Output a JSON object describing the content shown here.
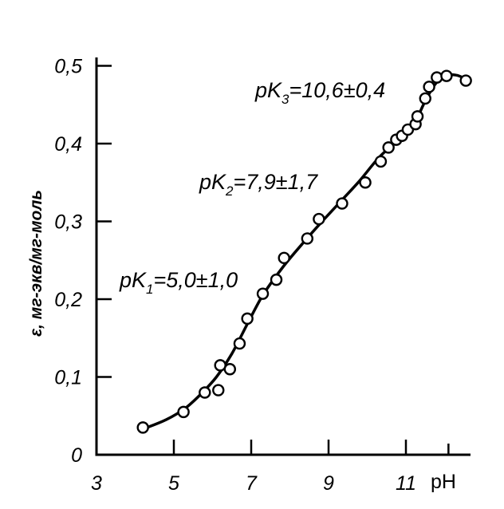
{
  "chart_data": {
    "type": "scatter",
    "xlabel": "pH",
    "ylabel": "ε, мг-экв/мг-моль",
    "xlim": [
      3,
      12.7
    ],
    "ylim": [
      0,
      0.52
    ],
    "xticks": [
      3,
      5,
      7,
      9,
      11
    ],
    "xtick_labels": [
      "3",
      "5",
      "7",
      "9",
      "11"
    ],
    "yticks": [
      0,
      0.1,
      0.2,
      0.3,
      0.4,
      0.5
    ],
    "ytick_labels": [
      "0",
      "0,1",
      "0,2",
      "0,3",
      "0,4",
      "0,5"
    ],
    "grid": false,
    "points": {
      "x": [
        4.2,
        5.25,
        5.8,
        6.15,
        6.2,
        6.45,
        6.7,
        6.9,
        7.3,
        7.65,
        7.85,
        8.45,
        8.75,
        9.35,
        9.95,
        10.35,
        10.55,
        10.75,
        10.9,
        11.05,
        11.25,
        11.3,
        11.5,
        11.6,
        11.8,
        12.05,
        12.55
      ],
      "y": [
        0.035,
        0.055,
        0.08,
        0.083,
        0.115,
        0.11,
        0.143,
        0.175,
        0.207,
        0.225,
        0.253,
        0.278,
        0.303,
        0.323,
        0.35,
        0.377,
        0.395,
        0.405,
        0.41,
        0.418,
        0.425,
        0.435,
        0.458,
        0.473,
        0.485,
        0.487,
        0.481
      ]
    },
    "fitted_curve": {
      "x": [
        4.2,
        4.8,
        5.3,
        5.7,
        6.1,
        6.5,
        6.9,
        7.3,
        7.8,
        8.3,
        8.8,
        9.3,
        9.8,
        10.3,
        10.8,
        11.2,
        11.5,
        11.75,
        12.0,
        12.3,
        12.55
      ],
      "y": [
        0.033,
        0.045,
        0.06,
        0.078,
        0.1,
        0.13,
        0.168,
        0.205,
        0.24,
        0.27,
        0.298,
        0.325,
        0.352,
        0.382,
        0.405,
        0.425,
        0.455,
        0.476,
        0.487,
        0.488,
        0.483
      ]
    },
    "annotations": [
      {
        "name": "pk1",
        "prefix": "pK",
        "sub": "1",
        "text": "=5,0±1,0"
      },
      {
        "name": "pk2",
        "prefix": "pK",
        "sub": "2",
        "text": "=7,9±1,7"
      },
      {
        "name": "pk3",
        "prefix": "pK",
        "sub": "3",
        "text": "=10,6±0,4"
      }
    ]
  }
}
